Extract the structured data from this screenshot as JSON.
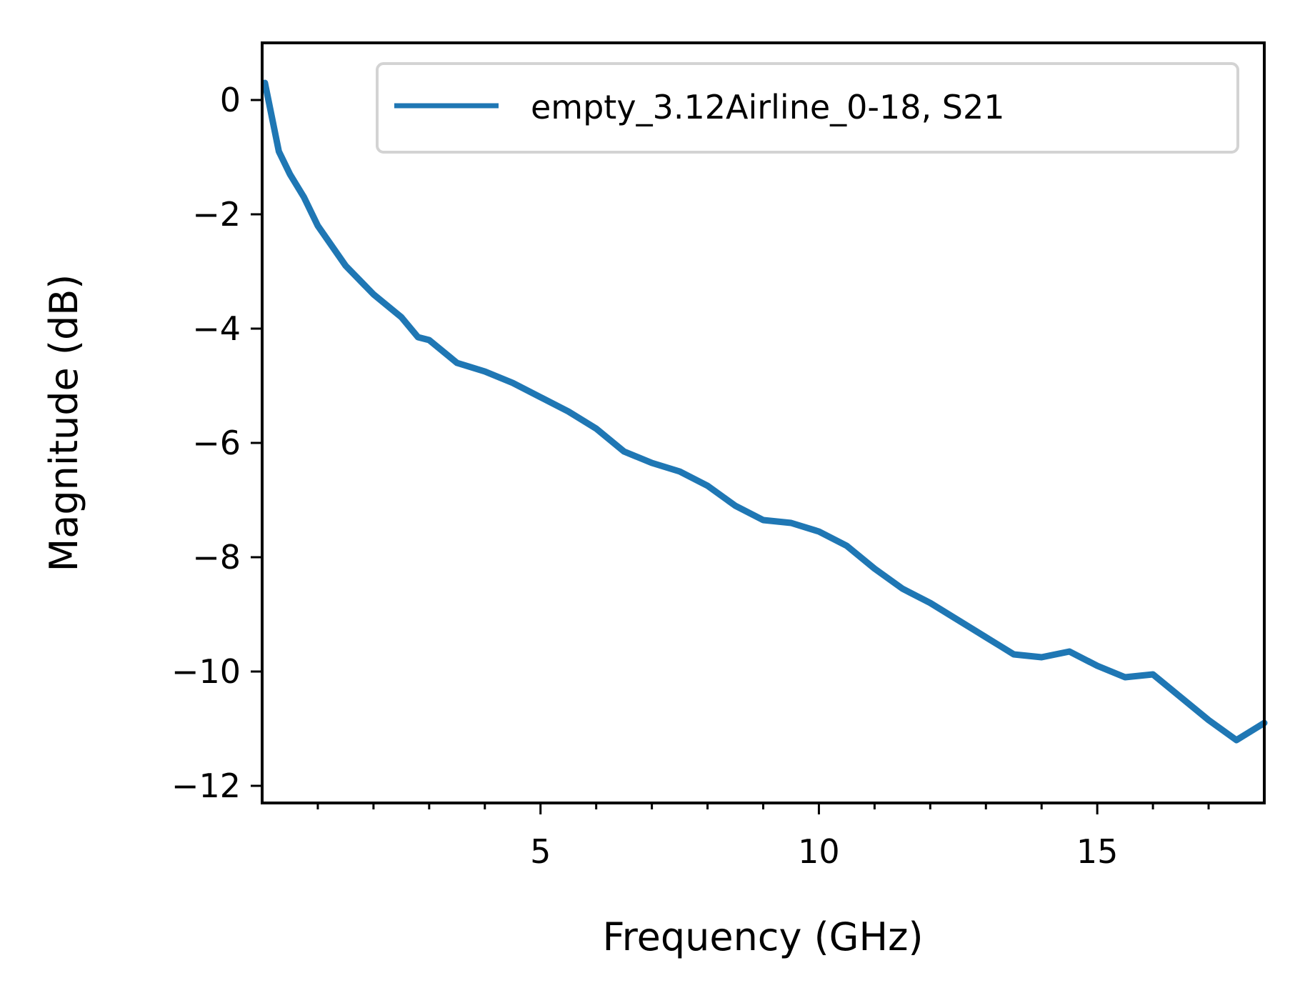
{
  "chart_data": {
    "type": "line",
    "xlabel": "Frequency (GHz)",
    "ylabel": "Magnitude (dB)",
    "xlim": [
      0,
      18
    ],
    "ylim": [
      -12.3,
      1.0
    ],
    "x_ticks": [
      5,
      10,
      15
    ],
    "x_tick_labels": [
      "5",
      "10",
      "15"
    ],
    "x_minor_ticks": [
      1,
      2,
      3,
      4,
      6,
      7,
      8,
      9,
      11,
      12,
      13,
      14,
      16,
      17
    ],
    "y_ticks": [
      0,
      -2,
      -4,
      -6,
      -8,
      -10,
      -12
    ],
    "y_tick_labels": [
      "0",
      "−2",
      "−4",
      "−6",
      "−8",
      "−10",
      "−12"
    ],
    "grid": false,
    "legend_position": "top-right",
    "series": [
      {
        "name": "empty_3.12Airline_0-18, S21",
        "color": "#1f77b4",
        "x": [
          0.05,
          0.3,
          0.5,
          0.75,
          1.0,
          1.5,
          2.0,
          2.5,
          2.8,
          3.0,
          3.5,
          4.0,
          4.5,
          5.0,
          5.5,
          6.0,
          6.5,
          7.0,
          7.5,
          8.0,
          8.5,
          9.0,
          9.5,
          10.0,
          10.5,
          11.0,
          11.5,
          12.0,
          12.5,
          13.0,
          13.5,
          14.0,
          14.5,
          15.0,
          15.5,
          16.0,
          16.5,
          17.0,
          17.5,
          18.0
        ],
        "y": [
          0.3,
          -0.9,
          -1.3,
          -1.7,
          -2.2,
          -2.9,
          -3.4,
          -3.8,
          -4.15,
          -4.2,
          -4.6,
          -4.75,
          -4.95,
          -5.2,
          -5.45,
          -5.75,
          -6.15,
          -6.35,
          -6.5,
          -6.75,
          -7.1,
          -7.35,
          -7.4,
          -7.55,
          -7.8,
          -8.2,
          -8.55,
          -8.8,
          -9.1,
          -9.4,
          -9.7,
          -9.75,
          -9.65,
          -9.9,
          -10.1,
          -10.05,
          -10.45,
          -10.85,
          -11.2,
          -10.9
        ]
      }
    ]
  }
}
